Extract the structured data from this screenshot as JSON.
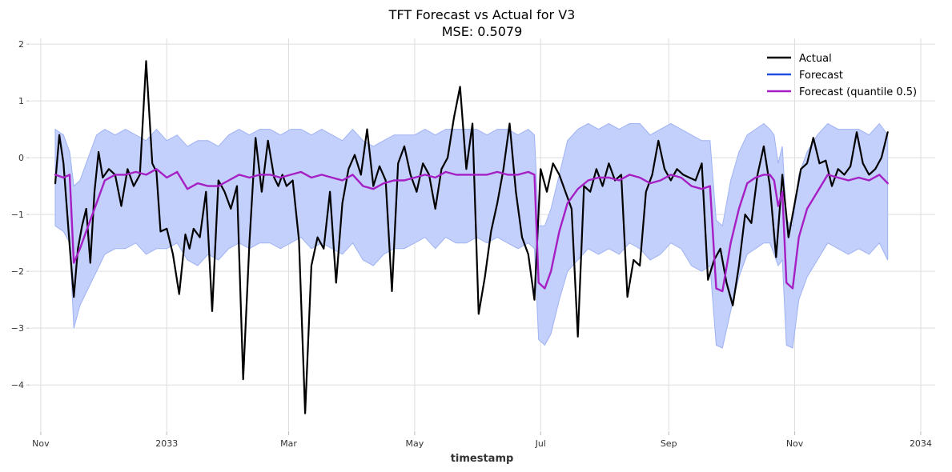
{
  "chart_data": {
    "type": "line",
    "title": "TFT Forecast vs Actual for V3",
    "subtitle": "MSE: 0.5079",
    "xlabel": "timestamp",
    "ylabel": "",
    "xlim": [
      "2032-10-27",
      "2034-01-08"
    ],
    "ylim": [
      -4.8,
      2.1
    ],
    "grid": true,
    "legend_position": "top-right",
    "x_ticks": [
      {
        "date": "2032-11-01",
        "label": "Nov"
      },
      {
        "date": "2033-01-01",
        "label": "2033"
      },
      {
        "date": "2033-03-01",
        "label": "Mar"
      },
      {
        "date": "2033-05-01",
        "label": "May"
      },
      {
        "date": "2033-07-01",
        "label": "Jul"
      },
      {
        "date": "2033-09-01",
        "label": "Sep"
      },
      {
        "date": "2033-11-01",
        "label": "Nov"
      },
      {
        "date": "2034-01-01",
        "label": "2034"
      }
    ],
    "y_ticks": [
      {
        "value": 2,
        "label": "2"
      },
      {
        "value": 1,
        "label": "1"
      },
      {
        "value": 0,
        "label": "0"
      },
      {
        "value": -1,
        "label": "−1"
      },
      {
        "value": -2,
        "label": "−2"
      },
      {
        "value": -3,
        "label": "−3"
      },
      {
        "value": -4,
        "label": "−4"
      }
    ],
    "colors": {
      "actual": "#000000",
      "forecast": "#1f4fe0",
      "median": "#a51fc4",
      "band_fill": "#c0cdfb",
      "band_edge": "#9fb2f3",
      "grid": "#dddddd"
    },
    "legend": [
      {
        "label": "Actual",
        "color": "#000000"
      },
      {
        "label": "Forecast",
        "color": "#1f4fe0"
      },
      {
        "label": "Forecast (quantile 0.5)",
        "color": "#a51fc4"
      }
    ],
    "series": [
      {
        "name": "Actual",
        "x": [
          "2032-11-08",
          "2032-11-10",
          "2032-11-12",
          "2032-11-15",
          "2032-11-17",
          "2032-11-19",
          "2032-11-21",
          "2032-11-23",
          "2032-11-25",
          "2032-11-27",
          "2032-11-29",
          "2032-12-01",
          "2032-12-04",
          "2032-12-07",
          "2032-12-10",
          "2032-12-13",
          "2032-12-16",
          "2032-12-19",
          "2032-12-22",
          "2032-12-25",
          "2032-12-27",
          "2032-12-29",
          "2033-01-01",
          "2033-01-04",
          "2033-01-07",
          "2033-01-10",
          "2033-01-12",
          "2033-01-14",
          "2033-01-17",
          "2033-01-20",
          "2033-01-23",
          "2033-01-26",
          "2033-01-29",
          "2033-02-01",
          "2033-02-04",
          "2033-02-07",
          "2033-02-10",
          "2033-02-13",
          "2033-02-16",
          "2033-02-19",
          "2033-02-22",
          "2033-02-24",
          "2033-02-26",
          "2033-02-28",
          "2033-03-03",
          "2033-03-06",
          "2033-03-09",
          "2033-03-12",
          "2033-03-15",
          "2033-03-18",
          "2033-03-21",
          "2033-03-24",
          "2033-03-27",
          "2033-03-30",
          "2033-04-02",
          "2033-04-05",
          "2033-04-08",
          "2033-04-11",
          "2033-04-14",
          "2033-04-17",
          "2033-04-20",
          "2033-04-23",
          "2033-04-26",
          "2033-04-29",
          "2033-05-02",
          "2033-05-05",
          "2033-05-08",
          "2033-05-11",
          "2033-05-14",
          "2033-05-17",
          "2033-05-20",
          "2033-05-23",
          "2033-05-26",
          "2033-05-29",
          "2033-06-01",
          "2033-06-04",
          "2033-06-07",
          "2033-06-10",
          "2033-06-13",
          "2033-06-16",
          "2033-06-19",
          "2033-06-22",
          "2033-06-25",
          "2033-06-28",
          "2033-07-01",
          "2033-07-04",
          "2033-07-07",
          "2033-07-10",
          "2033-07-13",
          "2033-07-16",
          "2033-07-19",
          "2033-07-22",
          "2033-07-25",
          "2033-07-28",
          "2033-07-31",
          "2033-08-03",
          "2033-08-06",
          "2033-08-09",
          "2033-08-12",
          "2033-08-15",
          "2033-08-18",
          "2033-08-21",
          "2033-08-24",
          "2033-08-27",
          "2033-08-30",
          "2033-09-02",
          "2033-09-05",
          "2033-09-08",
          "2033-09-11",
          "2033-09-14",
          "2033-09-17",
          "2033-09-20",
          "2033-09-23",
          "2033-09-26",
          "2033-09-29",
          "2033-10-02",
          "2033-10-05",
          "2033-10-08",
          "2033-10-11",
          "2033-10-14",
          "2033-10-17",
          "2033-10-20",
          "2033-10-23",
          "2033-10-26",
          "2033-10-29",
          "2033-11-01",
          "2033-11-04",
          "2033-11-07",
          "2033-11-10",
          "2033-11-13",
          "2033-11-16",
          "2033-11-19",
          "2033-11-22",
          "2033-11-25",
          "2033-11-28",
          "2033-12-01",
          "2033-12-04",
          "2033-12-07",
          "2033-12-10",
          "2033-12-13",
          "2033-12-16"
        ],
        "values": [
          -0.45,
          0.4,
          -0.1,
          -1.55,
          -2.45,
          -1.6,
          -1.2,
          -0.9,
          -1.85,
          -0.6,
          0.1,
          -0.35,
          -0.2,
          -0.3,
          -0.85,
          -0.2,
          -0.5,
          -0.3,
          1.7,
          -0.1,
          -0.25,
          -1.3,
          -1.25,
          -1.7,
          -2.4,
          -1.35,
          -1.6,
          -1.25,
          -1.4,
          -0.6,
          -2.7,
          -0.4,
          -0.6,
          -0.9,
          -0.5,
          -3.9,
          -1.5,
          0.35,
          -0.6,
          0.3,
          -0.35,
          -0.5,
          -0.3,
          -0.5,
          -0.4,
          -1.45,
          -4.5,
          -1.9,
          -1.4,
          -1.6,
          -0.6,
          -2.2,
          -0.8,
          -0.2,
          0.05,
          -0.3,
          0.5,
          -0.5,
          -0.15,
          -0.4,
          -2.35,
          -0.1,
          0.2,
          -0.3,
          -0.6,
          -0.1,
          -0.3,
          -0.9,
          -0.2,
          0.0,
          0.7,
          1.25,
          -0.2,
          0.6,
          -2.75,
          -2.1,
          -1.3,
          -0.8,
          -0.2,
          0.6,
          -0.6,
          -1.4,
          -1.7,
          -2.5,
          -0.2,
          -0.6,
          -0.1,
          -0.3,
          -0.6,
          -0.9,
          -3.15,
          -0.5,
          -0.6,
          -0.2,
          -0.5,
          -0.1,
          -0.4,
          -0.3,
          -2.45,
          -1.8,
          -1.9,
          -0.6,
          -0.3,
          0.3,
          -0.2,
          -0.4,
          -0.2,
          -0.3,
          -0.35,
          -0.4,
          -0.1,
          -2.15,
          -1.8,
          -1.6,
          -2.2,
          -2.6,
          -1.9,
          -1.0,
          -1.15,
          -0.3,
          0.2,
          -0.5,
          -1.75,
          -0.3,
          -1.4,
          -0.8,
          -0.2,
          -0.1,
          0.35,
          -0.1,
          -0.05,
          -0.5,
          -0.2,
          -0.3,
          -0.15,
          0.45,
          -0.1,
          -0.3,
          -0.2,
          0.0,
          0.45
        ],
        "color": "#000000"
      },
      {
        "name": "Forecast (quantile 0.5)",
        "x": [
          "2032-11-08",
          "2032-11-12",
          "2032-11-15",
          "2032-11-17",
          "2032-11-20",
          "2032-11-24",
          "2032-11-28",
          "2032-12-02",
          "2032-12-07",
          "2032-12-12",
          "2032-12-17",
          "2032-12-22",
          "2032-12-27",
          "2033-01-01",
          "2033-01-06",
          "2033-01-11",
          "2033-01-16",
          "2033-01-21",
          "2033-01-26",
          "2033-01-31",
          "2033-02-05",
          "2033-02-10",
          "2033-02-15",
          "2033-02-20",
          "2033-02-25",
          "2033-03-02",
          "2033-03-07",
          "2033-03-12",
          "2033-03-17",
          "2033-03-22",
          "2033-03-27",
          "2033-04-01",
          "2033-04-06",
          "2033-04-11",
          "2033-04-16",
          "2033-04-21",
          "2033-04-26",
          "2033-05-01",
          "2033-05-06",
          "2033-05-11",
          "2033-05-16",
          "2033-05-21",
          "2033-05-26",
          "2033-05-31",
          "2033-06-05",
          "2033-06-10",
          "2033-06-15",
          "2033-06-20",
          "2033-06-25",
          "2033-06-28",
          "2033-06-30",
          "2033-07-03",
          "2033-07-06",
          "2033-07-10",
          "2033-07-14",
          "2033-07-19",
          "2033-07-24",
          "2033-07-29",
          "2033-08-03",
          "2033-08-08",
          "2033-08-13",
          "2033-08-18",
          "2033-08-23",
          "2033-08-28",
          "2033-09-02",
          "2033-09-07",
          "2033-09-12",
          "2033-09-17",
          "2033-09-21",
          "2033-09-24",
          "2033-09-27",
          "2033-10-01",
          "2033-10-05",
          "2033-10-09",
          "2033-10-13",
          "2033-10-17",
          "2033-10-20",
          "2033-10-22",
          "2033-10-24",
          "2033-10-26",
          "2033-10-28",
          "2033-10-31",
          "2033-11-03",
          "2033-11-07",
          "2033-11-12",
          "2033-11-17",
          "2033-11-22",
          "2033-11-27",
          "2033-12-02",
          "2033-12-07",
          "2033-12-12",
          "2033-12-16"
        ],
        "values": [
          -0.3,
          -0.35,
          -0.3,
          -1.85,
          -1.6,
          -1.2,
          -0.8,
          -0.4,
          -0.3,
          -0.3,
          -0.25,
          -0.3,
          -0.2,
          -0.35,
          -0.25,
          -0.55,
          -0.45,
          -0.5,
          -0.5,
          -0.4,
          -0.3,
          -0.35,
          -0.3,
          -0.3,
          -0.35,
          -0.3,
          -0.25,
          -0.35,
          -0.3,
          -0.35,
          -0.4,
          -0.3,
          -0.5,
          -0.55,
          -0.45,
          -0.4,
          -0.4,
          -0.35,
          -0.3,
          -0.35,
          -0.25,
          -0.3,
          -0.3,
          -0.3,
          -0.3,
          -0.25,
          -0.3,
          -0.3,
          -0.25,
          -0.3,
          -2.2,
          -2.3,
          -2.0,
          -1.3,
          -0.8,
          -0.55,
          -0.4,
          -0.35,
          -0.35,
          -0.4,
          -0.3,
          -0.35,
          -0.45,
          -0.4,
          -0.3,
          -0.35,
          -0.5,
          -0.55,
          -0.5,
          -2.3,
          -2.35,
          -1.5,
          -0.9,
          -0.45,
          -0.35,
          -0.3,
          -0.3,
          -0.4,
          -0.85,
          -0.6,
          -2.2,
          -2.3,
          -1.4,
          -0.9,
          -0.6,
          -0.3,
          -0.35,
          -0.4,
          -0.35,
          -0.4,
          -0.3,
          -0.45
        ],
        "color": "#a51fc4"
      },
      {
        "name": "Forecast",
        "x": [
          "2032-11-08",
          "2032-11-12",
          "2032-11-15",
          "2032-11-17",
          "2032-11-20",
          "2032-11-24",
          "2032-11-28",
          "2032-12-02",
          "2032-12-07",
          "2032-12-12",
          "2032-12-17",
          "2032-12-22",
          "2032-12-27",
          "2033-01-01",
          "2033-01-06",
          "2033-01-11",
          "2033-01-16",
          "2033-01-21",
          "2033-01-26",
          "2033-01-31",
          "2033-02-05",
          "2033-02-10",
          "2033-02-15",
          "2033-02-20",
          "2033-02-25",
          "2033-03-02",
          "2033-03-07",
          "2033-03-12",
          "2033-03-17",
          "2033-03-22",
          "2033-03-27",
          "2033-04-01",
          "2033-04-06",
          "2033-04-11",
          "2033-04-16",
          "2033-04-21",
          "2033-04-26",
          "2033-05-01",
          "2033-05-06",
          "2033-05-11",
          "2033-05-16",
          "2033-05-21",
          "2033-05-26",
          "2033-05-31",
          "2033-06-05",
          "2033-06-10",
          "2033-06-15",
          "2033-06-20",
          "2033-06-25",
          "2033-06-28",
          "2033-06-30",
          "2033-07-03",
          "2033-07-06",
          "2033-07-10",
          "2033-07-14",
          "2033-07-19",
          "2033-07-24",
          "2033-07-29",
          "2033-08-03",
          "2033-08-08",
          "2033-08-13",
          "2033-08-18",
          "2033-08-23",
          "2033-08-28",
          "2033-09-02",
          "2033-09-07",
          "2033-09-12",
          "2033-09-17",
          "2033-09-21",
          "2033-09-24",
          "2033-09-27",
          "2033-10-01",
          "2033-10-05",
          "2033-10-09",
          "2033-10-13",
          "2033-10-17",
          "2033-10-20",
          "2033-10-22",
          "2033-10-24",
          "2033-10-26",
          "2033-10-28",
          "2033-10-31",
          "2033-11-03",
          "2033-11-07",
          "2033-11-12",
          "2033-11-17",
          "2033-11-22",
          "2033-11-27",
          "2033-12-02",
          "2033-12-07",
          "2033-12-12",
          "2033-12-16"
        ],
        "lower": [
          -1.2,
          -1.3,
          -1.5,
          -3.0,
          -2.6,
          -2.3,
          -2.0,
          -1.7,
          -1.6,
          -1.6,
          -1.5,
          -1.7,
          -1.6,
          -1.6,
          -1.5,
          -1.8,
          -1.9,
          -1.7,
          -1.8,
          -1.6,
          -1.5,
          -1.6,
          -1.5,
          -1.5,
          -1.6,
          -1.5,
          -1.4,
          -1.6,
          -1.5,
          -1.6,
          -1.7,
          -1.5,
          -1.8,
          -1.9,
          -1.7,
          -1.6,
          -1.6,
          -1.5,
          -1.4,
          -1.6,
          -1.4,
          -1.5,
          -1.5,
          -1.4,
          -1.5,
          -1.4,
          -1.5,
          -1.6,
          -1.5,
          -1.6,
          -3.2,
          -3.3,
          -3.1,
          -2.5,
          -2.0,
          -1.8,
          -1.6,
          -1.7,
          -1.6,
          -1.7,
          -1.5,
          -1.6,
          -1.8,
          -1.7,
          -1.5,
          -1.6,
          -1.9,
          -2.0,
          -1.9,
          -3.3,
          -3.35,
          -2.7,
          -2.1,
          -1.7,
          -1.6,
          -1.5,
          -1.5,
          -1.7,
          -1.9,
          -1.8,
          -3.3,
          -3.35,
          -2.5,
          -2.1,
          -1.8,
          -1.5,
          -1.6,
          -1.7,
          -1.6,
          -1.7,
          -1.5,
          -1.8
        ],
        "upper": [
          0.5,
          0.4,
          0.1,
          -0.5,
          -0.4,
          0.0,
          0.4,
          0.5,
          0.4,
          0.5,
          0.4,
          0.3,
          0.5,
          0.3,
          0.4,
          0.2,
          0.3,
          0.3,
          0.2,
          0.4,
          0.5,
          0.4,
          0.5,
          0.5,
          0.4,
          0.5,
          0.5,
          0.4,
          0.5,
          0.4,
          0.3,
          0.5,
          0.3,
          0.2,
          0.3,
          0.4,
          0.4,
          0.4,
          0.5,
          0.4,
          0.5,
          0.5,
          0.5,
          0.5,
          0.4,
          0.5,
          0.5,
          0.4,
          0.5,
          0.4,
          -1.2,
          -1.2,
          -0.9,
          -0.3,
          0.3,
          0.5,
          0.6,
          0.5,
          0.6,
          0.5,
          0.6,
          0.6,
          0.4,
          0.5,
          0.6,
          0.5,
          0.4,
          0.3,
          0.3,
          -1.1,
          -1.2,
          -0.4,
          0.1,
          0.4,
          0.5,
          0.6,
          0.5,
          0.4,
          -0.1,
          0.2,
          -1.1,
          -1.2,
          -0.3,
          0.1,
          0.4,
          0.6,
          0.5,
          0.5,
          0.5,
          0.4,
          0.6,
          0.4
        ],
        "color": "#1f4fe0"
      }
    ]
  }
}
